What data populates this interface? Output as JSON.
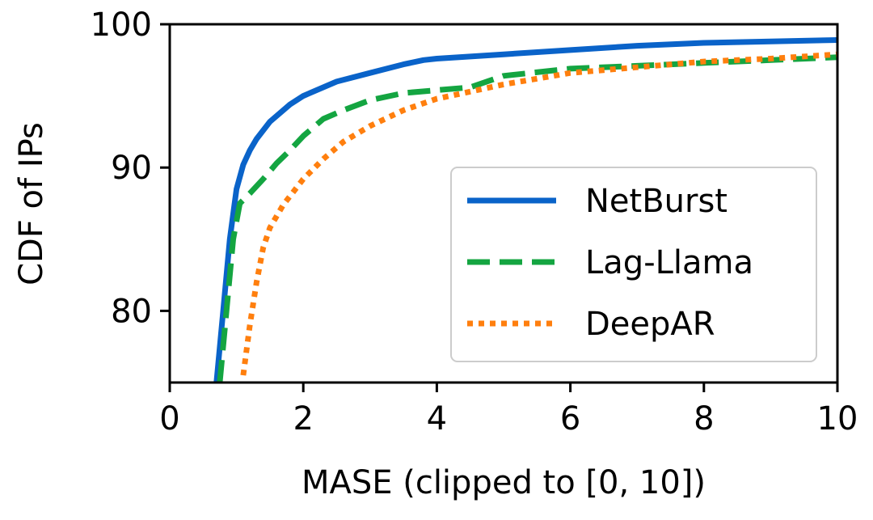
{
  "chart_data": {
    "type": "line",
    "title": "",
    "xlabel": "MASE (clipped to [0, 10])",
    "ylabel": "CDF of IPs",
    "xlim": [
      0,
      10
    ],
    "ylim": [
      75,
      100
    ],
    "xticks": [
      0,
      2,
      4,
      6,
      8,
      10
    ],
    "yticks": [
      80,
      90,
      100
    ],
    "xtick_labels": [
      "0",
      "2",
      "4",
      "6",
      "8",
      "10"
    ],
    "ytick_labels": [
      "80",
      "90",
      "100"
    ],
    "grid": false,
    "legend_position": "center-right",
    "series": [
      {
        "name": "NetBurst",
        "color": "#0a63c9",
        "style": "solid",
        "x": [
          0.7,
          0.8,
          0.9,
          1.0,
          1.1,
          1.2,
          1.3,
          1.5,
          1.8,
          2.0,
          2.5,
          3.0,
          3.5,
          3.8,
          4.0,
          5.0,
          6.0,
          7.0,
          8.0,
          9.0,
          10.0
        ],
        "y": [
          75,
          80,
          85,
          88.5,
          90.2,
          91.2,
          92.0,
          93.2,
          94.4,
          95.0,
          96.0,
          96.6,
          97.2,
          97.5,
          97.6,
          97.9,
          98.2,
          98.5,
          98.7,
          98.8,
          98.9
        ]
      },
      {
        "name": "Lag-Llama",
        "color": "#14a541",
        "style": "dashed",
        "x": [
          0.75,
          0.85,
          0.95,
          1.05,
          1.2,
          1.4,
          1.6,
          1.8,
          2.0,
          2.3,
          2.6,
          3.0,
          3.5,
          4.0,
          4.5,
          5.0,
          6.0,
          7.0,
          8.0,
          9.0,
          10.0
        ],
        "y": [
          75,
          80,
          85,
          87.5,
          88.2,
          89.2,
          90.3,
          91.2,
          92.2,
          93.4,
          94.0,
          94.7,
          95.2,
          95.4,
          95.6,
          96.4,
          96.9,
          97.1,
          97.3,
          97.5,
          97.7
        ]
      },
      {
        "name": "DeepAR",
        "color": "#ff7f0e",
        "style": "dotted",
        "x": [
          1.1,
          1.2,
          1.3,
          1.4,
          1.5,
          1.7,
          2.0,
          2.3,
          2.6,
          3.0,
          3.5,
          4.0,
          4.5,
          5.0,
          6.0,
          7.0,
          8.0,
          9.0,
          10.0
        ],
        "y": [
          75.5,
          79,
          82,
          84.4,
          85.8,
          87.4,
          89.2,
          90.6,
          91.8,
          92.9,
          94.0,
          94.8,
          95.3,
          95.8,
          96.6,
          97.0,
          97.4,
          97.6,
          97.9
        ]
      }
    ]
  }
}
